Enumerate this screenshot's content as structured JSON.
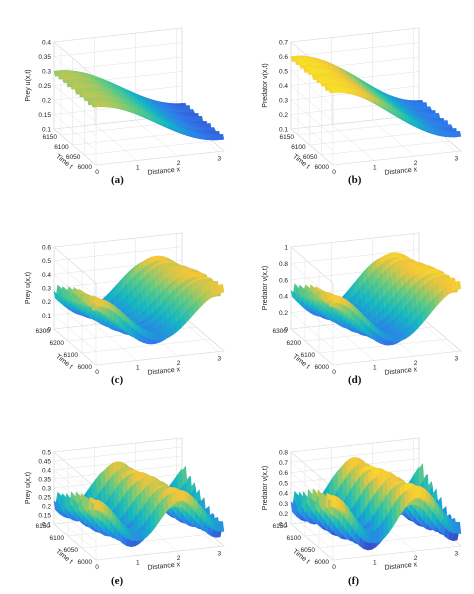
{
  "chart_data": [
    {
      "type": "surface",
      "panel_label": "(a)",
      "zlabel": "Prey u(x,t)",
      "xlabel": "Distance x",
      "ylabel": "Time t",
      "x_ticks": [
        "0",
        "1",
        "2",
        "3"
      ],
      "y_ticks": [
        "6000",
        "6050",
        "6100",
        "6150"
      ],
      "z_ticks": [
        "0.1",
        "0.15",
        "0.2",
        "0.25",
        "0.3",
        "0.35",
        "0.4"
      ],
      "xlim": [
        0,
        3.14
      ],
      "ylim": [
        6000,
        6180
      ],
      "zlim": [
        0.1,
        0.4
      ],
      "grid": true,
      "colormap": [
        "#3e26a8",
        "#2f7bec",
        "#13b7c3",
        "#5fca83",
        "#f3c53a",
        "#f9fb15"
      ],
      "surface": {
        "base": 0.22,
        "amp_x": 0.08,
        "x_waves": 1,
        "amp_t": 0.015,
        "t_waves": 10,
        "phase_shift": 0
      }
    },
    {
      "type": "surface",
      "panel_label": "(b)",
      "zlabel": "Predator v(x,t)",
      "xlabel": "Distance x",
      "ylabel": "Time t",
      "x_ticks": [
        "0",
        "1",
        "2",
        "3"
      ],
      "y_ticks": [
        "6000",
        "6050",
        "6100",
        "6150"
      ],
      "z_ticks": [
        "0.1",
        "0.2",
        "0.3",
        "0.4",
        "0.5",
        "0.6",
        "0.7"
      ],
      "xlim": [
        0,
        3.14
      ],
      "ylim": [
        6000,
        6180
      ],
      "zlim": [
        0.1,
        0.7
      ],
      "grid": true,
      "colormap": [
        "#3e26a8",
        "#2f7bec",
        "#13b7c3",
        "#5fca83",
        "#f3c53a",
        "#f9fb15"
      ],
      "surface": {
        "base": 0.4,
        "amp_x": 0.2,
        "x_waves": 1,
        "amp_t": 0.03,
        "t_waves": 10,
        "phase_shift": 0
      }
    },
    {
      "type": "surface",
      "panel_label": "(c)",
      "zlabel": "Prey u(x,t)",
      "xlabel": "Distance x",
      "ylabel": "Time t",
      "x_ticks": [
        "0",
        "1",
        "2",
        "3"
      ],
      "y_ticks": [
        "6000",
        "6100",
        "6200",
        "6300"
      ],
      "z_ticks": [
        "0",
        "0.1",
        "0.2",
        "0.3",
        "0.4",
        "0.5",
        "0.6"
      ],
      "xlim": [
        0,
        3.14
      ],
      "ylim": [
        6000,
        6300
      ],
      "zlim": [
        0,
        0.6
      ],
      "grid": true,
      "colormap": [
        "#3e26a8",
        "#2f7bec",
        "#13b7c3",
        "#5fca83",
        "#f3c53a",
        "#f9fb15"
      ],
      "surface": {
        "base": 0.28,
        "amp_x": 0.15,
        "x_waves": 2,
        "amp_t": 0.05,
        "t_waves": 8,
        "phase_shift": 1.6
      }
    },
    {
      "type": "surface",
      "panel_label": "(d)",
      "zlabel": "Predator v(x,t)",
      "xlabel": "Distance x",
      "ylabel": "Time t",
      "x_ticks": [
        "0",
        "1",
        "2",
        "3"
      ],
      "y_ticks": [
        "6000",
        "6100",
        "6200",
        "6300"
      ],
      "z_ticks": [
        "0",
        "0.2",
        "0.4",
        "0.6",
        "0.8",
        "1"
      ],
      "xlim": [
        0,
        3.14
      ],
      "ylim": [
        6000,
        6300
      ],
      "zlim": [
        0,
        1
      ],
      "grid": true,
      "colormap": [
        "#3e26a8",
        "#2f7bec",
        "#13b7c3",
        "#5fca83",
        "#f3c53a",
        "#f9fb15"
      ],
      "surface": {
        "base": 0.48,
        "amp_x": 0.28,
        "x_waves": 2,
        "amp_t": 0.08,
        "t_waves": 8,
        "phase_shift": 1.6
      }
    },
    {
      "type": "surface",
      "panel_label": "(e)",
      "zlabel": "Prey u(x,t)",
      "xlabel": "Distance x",
      "ylabel": "Time t",
      "x_ticks": [
        "0",
        "1",
        "2",
        "3"
      ],
      "y_ticks": [
        "6000",
        "6050",
        "6100",
        "6150"
      ],
      "z_ticks": [
        "0.1",
        "0.15",
        "0.2",
        "0.25",
        "0.3",
        "0.35",
        "0.4",
        "0.45",
        "0.5"
      ],
      "xlim": [
        0,
        3.14
      ],
      "ylim": [
        6000,
        6150
      ],
      "zlim": [
        0.1,
        0.5
      ],
      "grid": true,
      "colormap": [
        "#3e26a8",
        "#2f7bec",
        "#13b7c3",
        "#5fca83",
        "#f3c53a",
        "#f9fb15"
      ],
      "surface": {
        "base": 0.28,
        "amp_x": 0.1,
        "x_waves": 3,
        "amp_t": 0.05,
        "t_waves": 9,
        "phase_shift": 2.1
      }
    },
    {
      "type": "surface",
      "panel_label": "(f)",
      "zlabel": "Predator v(x,t)",
      "xlabel": "Distance x",
      "ylabel": "Time t",
      "x_ticks": [
        "0",
        "1",
        "2",
        "3"
      ],
      "y_ticks": [
        "6000",
        "6050",
        "6100",
        "6150"
      ],
      "z_ticks": [
        "0.1",
        "0.2",
        "0.3",
        "0.4",
        "0.5",
        "0.6",
        "0.7",
        "0.8"
      ],
      "xlim": [
        0,
        3.14
      ],
      "ylim": [
        6000,
        6150
      ],
      "zlim": [
        0.1,
        0.8
      ],
      "grid": true,
      "colormap": [
        "#3e26a8",
        "#2f7bec",
        "#13b7c3",
        "#5fca83",
        "#f3c53a",
        "#f9fb15"
      ],
      "surface": {
        "base": 0.42,
        "amp_x": 0.2,
        "x_waves": 3,
        "amp_t": 0.1,
        "t_waves": 9,
        "phase_shift": 2.1
      }
    }
  ]
}
